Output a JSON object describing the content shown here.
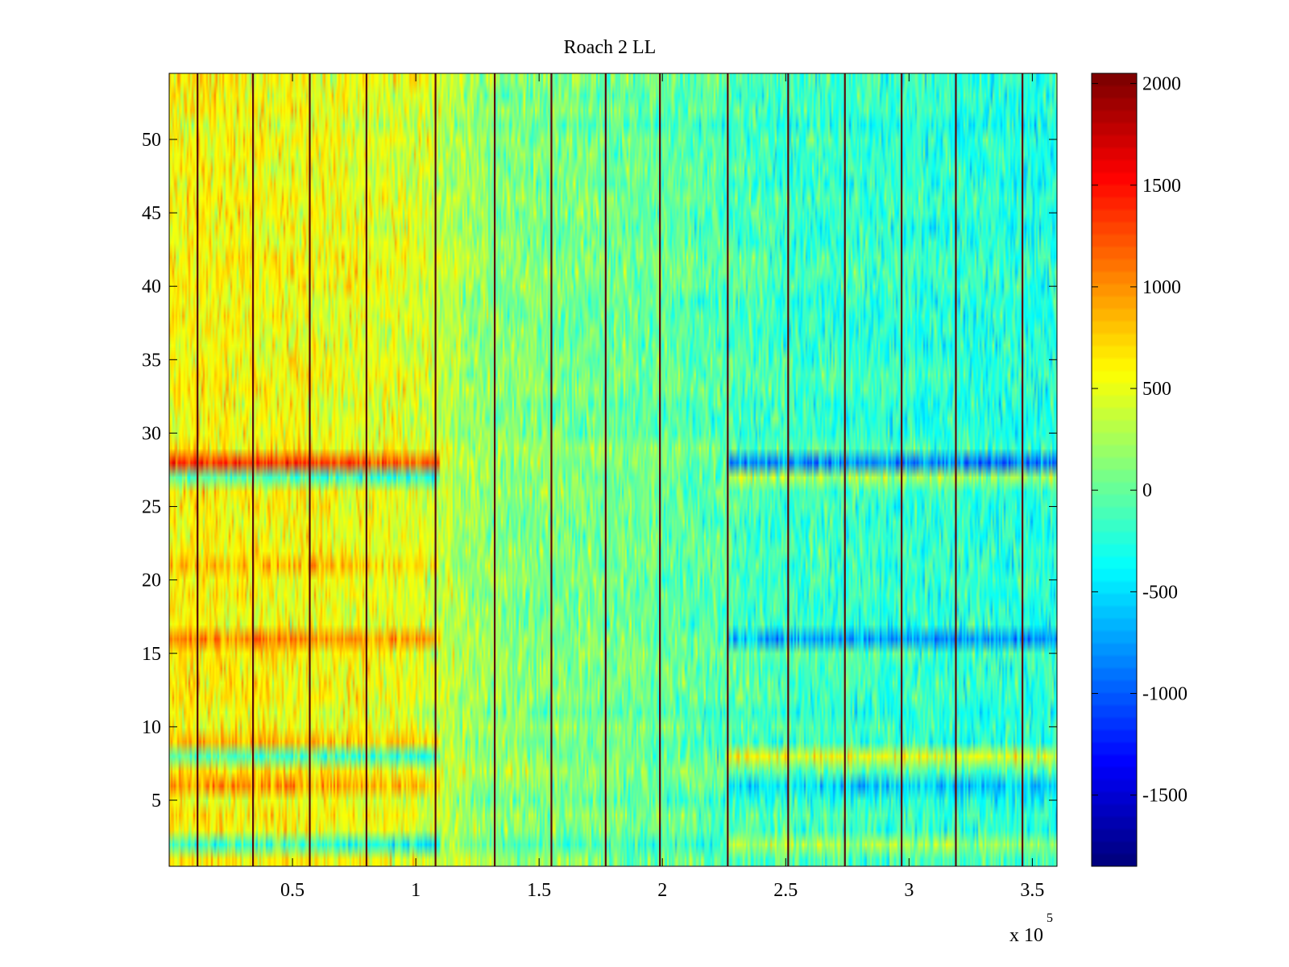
{
  "chart_data": {
    "type": "heatmap",
    "title": "Roach 2 LL",
    "xlabel": "",
    "ylabel": "",
    "xlim": [
      0,
      360000
    ],
    "ylim": [
      0.5,
      54.5
    ],
    "x_ticks": [
      50000,
      100000,
      150000,
      200000,
      250000,
      300000,
      350000
    ],
    "x_tick_labels": [
      "0.5",
      "1",
      "1.5",
      "2",
      "2.5",
      "3",
      "3.5"
    ],
    "x_multiplier_base": "x 10",
    "x_multiplier_exponent": "5",
    "y_ticks": [
      5,
      10,
      15,
      20,
      25,
      30,
      35,
      40,
      45,
      50
    ],
    "y_tick_labels": [
      "5",
      "10",
      "15",
      "20",
      "25",
      "30",
      "35",
      "40",
      "45",
      "50"
    ],
    "rows": 54,
    "colorbar": {
      "colormap": "jet",
      "clim": [
        -1850,
        2050
      ],
      "ticks": [
        2000,
        1500,
        1000,
        500,
        0,
        -500,
        -1000,
        -1500
      ],
      "tick_labels": [
        "2000",
        "1500",
        "1000",
        "500",
        "0",
        "-500",
        "-1000",
        "-1500"
      ]
    },
    "dark_vertical_lines_x": [
      11500,
      34000,
      57000,
      80000,
      108000,
      132000,
      155000,
      177000,
      199000,
      226500,
      251000,
      274000,
      297000,
      319000,
      346000
    ],
    "column_trend": [
      {
        "x": 0,
        "mean": 600
      },
      {
        "x": 55000,
        "mean": 550
      },
      {
        "x": 100000,
        "mean": 450
      },
      {
        "x": 130000,
        "mean": 150
      },
      {
        "x": 200000,
        "mean": 0
      },
      {
        "x": 250000,
        "mean": -150
      },
      {
        "x": 360000,
        "mean": -250
      }
    ],
    "row_offsets": [
      {
        "row": 2,
        "x_range": [
          0,
          110000
        ],
        "offset": -700
      },
      {
        "row": 2,
        "x_range": [
          110000,
          226000
        ],
        "offset": -150
      },
      {
        "row": 2,
        "x_range": [
          226000,
          360000
        ],
        "offset": 450
      },
      {
        "row": 6,
        "x_range": [
          0,
          110000
        ],
        "offset": 350
      },
      {
        "row": 6,
        "x_range": [
          226000,
          360000
        ],
        "offset": -350
      },
      {
        "row": 8,
        "x_range": [
          0,
          110000
        ],
        "offset": -650
      },
      {
        "row": 8,
        "x_range": [
          226000,
          360000
        ],
        "offset": 650
      },
      {
        "row": 9,
        "x_range": [
          0,
          110000
        ],
        "offset": 300
      },
      {
        "row": 16,
        "x_range": [
          0,
          110000
        ],
        "offset": 450
      },
      {
        "row": 16,
        "x_range": [
          226000,
          360000
        ],
        "offset": -550
      },
      {
        "row": 21,
        "x_range": [
          0,
          110000
        ],
        "offset": 250
      },
      {
        "row": 27,
        "x_range": [
          0,
          110000
        ],
        "offset": -650
      },
      {
        "row": 27,
        "x_range": [
          226000,
          360000
        ],
        "offset": 400
      },
      {
        "row": 28,
        "x_range": [
          0,
          110000
        ],
        "offset": 700
      },
      {
        "row": 28,
        "x_range": [
          226000,
          360000
        ],
        "offset": -700
      }
    ]
  }
}
